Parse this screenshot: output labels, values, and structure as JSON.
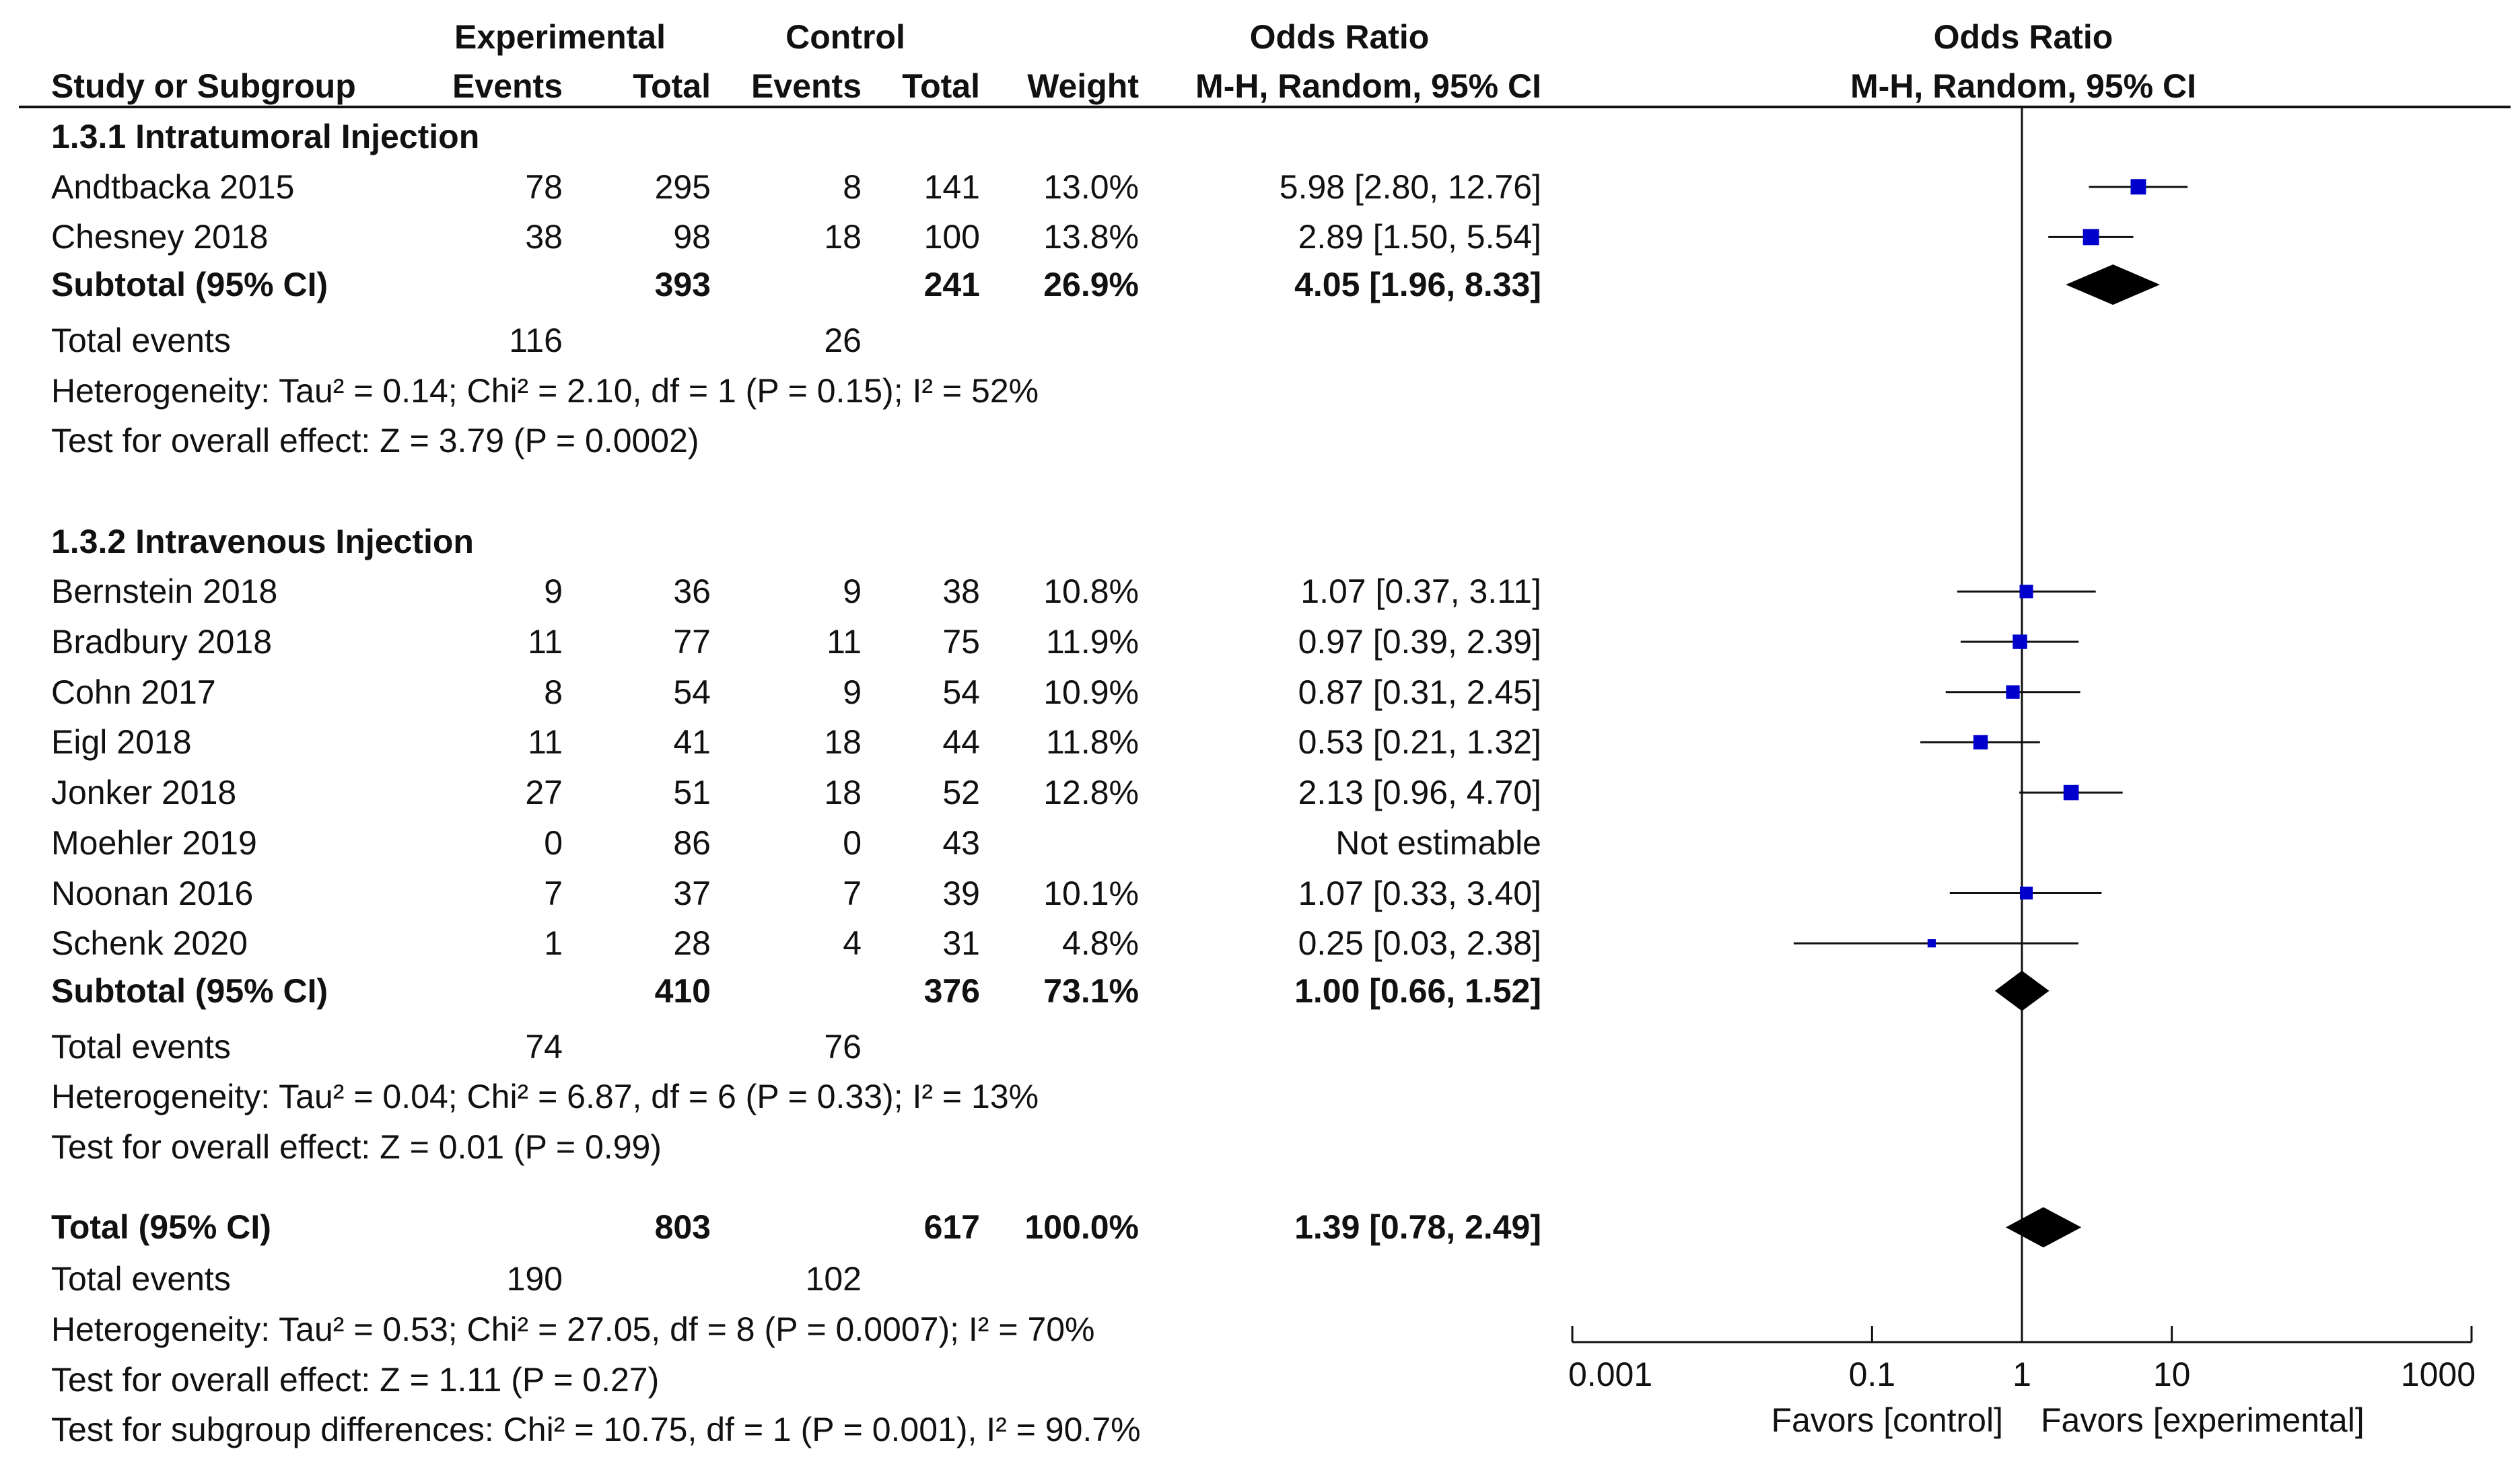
{
  "headers": {
    "group_experimental": "Experimental",
    "group_control": "Control",
    "group_odds_ratio": "Odds Ratio",
    "plot_title": "Odds Ratio",
    "study_col": "Study or Subgroup",
    "exp_events": "Events",
    "exp_total": "Total",
    "ctl_events": "Events",
    "ctl_total": "Total",
    "weight": "Weight",
    "method": "M-H, Random, 95% CI",
    "plot_method": "M-H, Random, 95% CI"
  },
  "subgroups": [
    {
      "title": "1.3.1 Intratumoral Injection",
      "studies": [
        {
          "name": "Andtbacka 2015",
          "exp_events": "78",
          "exp_total": "295",
          "ctl_events": "8",
          "ctl_total": "141",
          "weight": "13.0%",
          "or_text": "5.98 [2.80, 12.76]"
        },
        {
          "name": "Chesney 2018",
          "exp_events": "38",
          "exp_total": "98",
          "ctl_events": "18",
          "ctl_total": "100",
          "weight": "13.8%",
          "or_text": "2.89 [1.50, 5.54]"
        }
      ],
      "subtotal": {
        "label": "Subtotal (95% CI)",
        "exp_total": "393",
        "ctl_total": "241",
        "weight": "26.9%",
        "or_text": "4.05 [1.96, 8.33]"
      },
      "events": {
        "label": "Total events",
        "exp": "116",
        "ctl": "26"
      },
      "heterogeneity": "Heterogeneity: Tau² = 0.14; Chi² = 2.10, df = 1 (P = 0.15); I² = 52%",
      "overall": "Test for overall effect: Z = 3.79 (P = 0.0002)"
    },
    {
      "title": "1.3.2 Intravenous Injection",
      "studies": [
        {
          "name": "Bernstein 2018",
          "exp_events": "9",
          "exp_total": "36",
          "ctl_events": "9",
          "ctl_total": "38",
          "weight": "10.8%",
          "or_text": "1.07 [0.37, 3.11]"
        },
        {
          "name": "Bradbury 2018",
          "exp_events": "11",
          "exp_total": "77",
          "ctl_events": "11",
          "ctl_total": "75",
          "weight": "11.9%",
          "or_text": "0.97 [0.39, 2.39]"
        },
        {
          "name": "Cohn 2017",
          "exp_events": "8",
          "exp_total": "54",
          "ctl_events": "9",
          "ctl_total": "54",
          "weight": "10.9%",
          "or_text": "0.87 [0.31, 2.45]"
        },
        {
          "name": "Eigl 2018",
          "exp_events": "11",
          "exp_total": "41",
          "ctl_events": "18",
          "ctl_total": "44",
          "weight": "11.8%",
          "or_text": "0.53 [0.21, 1.32]"
        },
        {
          "name": "Jonker 2018",
          "exp_events": "27",
          "exp_total": "51",
          "ctl_events": "18",
          "ctl_total": "52",
          "weight": "12.8%",
          "or_text": "2.13 [0.96, 4.70]"
        },
        {
          "name": "Moehler 2019",
          "exp_events": "0",
          "exp_total": "86",
          "ctl_events": "0",
          "ctl_total": "43",
          "weight": "",
          "or_text": "Not estimable"
        },
        {
          "name": "Noonan 2016",
          "exp_events": "7",
          "exp_total": "37",
          "ctl_events": "7",
          "ctl_total": "39",
          "weight": "10.1%",
          "or_text": "1.07 [0.33, 3.40]"
        },
        {
          "name": "Schenk 2020",
          "exp_events": "1",
          "exp_total": "28",
          "ctl_events": "4",
          "ctl_total": "31",
          "weight": "4.8%",
          "or_text": "0.25 [0.03, 2.38]"
        }
      ],
      "subtotal": {
        "label": "Subtotal (95% CI)",
        "exp_total": "410",
        "ctl_total": "376",
        "weight": "73.1%",
        "or_text": "1.00 [0.66, 1.52]"
      },
      "events": {
        "label": "Total events",
        "exp": "74",
        "ctl": "76"
      },
      "heterogeneity": "Heterogeneity: Tau² = 0.04; Chi² = 6.87, df = 6 (P = 0.33); I² = 13%",
      "overall": "Test for overall effect: Z = 0.01 (P = 0.99)"
    }
  ],
  "total": {
    "label": "Total (95% CI)",
    "exp_total": "803",
    "ctl_total": "617",
    "weight": "100.0%",
    "or_text": "1.39 [0.78, 2.49]",
    "events": {
      "label": "Total events",
      "exp": "190",
      "ctl": "102"
    },
    "heterogeneity": "Heterogeneity: Tau² = 0.53; Chi² = 27.05, df = 8 (P = 0.0007); I² = 70%",
    "overall": "Test for overall effect: Z = 1.11 (P = 0.27)",
    "subgroup_diff": "Test for subgroup differences: Chi² = 10.75, df = 1 (P = 0.001), I² = 90.7%"
  },
  "chart_data": {
    "type": "forest",
    "scale": "log",
    "xlim": [
      0.001,
      1000
    ],
    "ticks": [
      0.001,
      0.1,
      1,
      10,
      1000
    ],
    "tick_labels": [
      "0.001",
      "0.1",
      "1",
      "10",
      "1000"
    ],
    "null_value": 1,
    "favors_left": "Favors [control]",
    "favors_right": "Favors [experimental]",
    "marker_color": "#0000cc",
    "studies": [
      {
        "name": "Andtbacka 2015",
        "or": 5.98,
        "lo": 2.8,
        "hi": 12.76,
        "weight": 13.0
      },
      {
        "name": "Chesney 2018",
        "or": 2.89,
        "lo": 1.5,
        "hi": 5.54,
        "weight": 13.8
      },
      {
        "name": "Bernstein 2018",
        "or": 1.07,
        "lo": 0.37,
        "hi": 3.11,
        "weight": 10.8
      },
      {
        "name": "Bradbury 2018",
        "or": 0.97,
        "lo": 0.39,
        "hi": 2.39,
        "weight": 11.9
      },
      {
        "name": "Cohn 2017",
        "or": 0.87,
        "lo": 0.31,
        "hi": 2.45,
        "weight": 10.9
      },
      {
        "name": "Eigl 2018",
        "or": 0.53,
        "lo": 0.21,
        "hi": 1.32,
        "weight": 11.8
      },
      {
        "name": "Jonker 2018",
        "or": 2.13,
        "lo": 0.96,
        "hi": 4.7,
        "weight": 12.8
      },
      {
        "name": "Noonan 2016",
        "or": 1.07,
        "lo": 0.33,
        "hi": 3.4,
        "weight": 10.1
      },
      {
        "name": "Schenk 2020",
        "or": 0.25,
        "lo": 0.03,
        "hi": 2.38,
        "weight": 4.8
      }
    ],
    "diamonds": [
      {
        "name": "Subtotal 1.3.1",
        "or": 4.05,
        "lo": 1.96,
        "hi": 8.33
      },
      {
        "name": "Subtotal 1.3.2",
        "or": 1.0,
        "lo": 0.66,
        "hi": 1.52
      },
      {
        "name": "Total",
        "or": 1.39,
        "lo": 0.78,
        "hi": 2.49
      }
    ]
  }
}
